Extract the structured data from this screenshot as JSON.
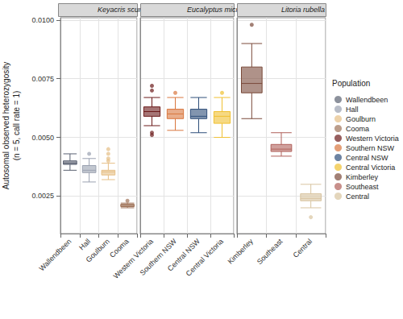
{
  "chart_data": {
    "type": "boxplot",
    "y_label": "Autosomal observed heterozygosity\n(n = 5, call rate = 1)",
    "ylim": [
      0.0009,
      0.0101
    ],
    "yticks": [
      0.0025,
      {
        "value": 0.005,
        "label": "0.0050"
      },
      0.0075,
      {
        "value": 0.01,
        "label": "0.0100"
      }
    ],
    "grid": true,
    "legend": "right",
    "legend_title": "Population",
    "panels": [
      {
        "title": "Keyacris scurra",
        "categories": [
          "Wallendbeen",
          "Hall",
          "Goulburn",
          "Cooma"
        ],
        "colors": [
          "#5b6272",
          "#9aa1b0",
          "#e6bf86",
          "#a0745a"
        ],
        "values": [
          [
            0.0036,
            0.00385,
            0.0039,
            0.004,
            0.0043
          ],
          [
            0.0031,
            0.0035,
            0.0036,
            0.0038,
            0.0041
          ],
          [
            0.0032,
            0.0034,
            0.00353,
            0.0036,
            0.0039
          ],
          [
            0.002,
            0.00205,
            0.0021,
            0.00215,
            0.0022
          ]
        ],
        "outliers": [
          [],
          [
            0.0043
          ],
          [
            0.004,
            0.0041,
            0.0043,
            0.0045
          ],
          [
            0.0023
          ]
        ]
      },
      {
        "title": "Eucalyptus microcarpa",
        "categories": [
          "Western Victoria",
          "Southern NSW",
          "Central NSW",
          "Central Victoria"
        ],
        "colors": [
          "#6b1a1a",
          "#d9763e",
          "#2f4f7a",
          "#f0c030"
        ],
        "values": [
          [
            0.0055,
            0.0059,
            0.0061,
            0.0063,
            0.0067
          ],
          [
            0.0053,
            0.0058,
            0.006,
            0.0062,
            0.0067
          ],
          [
            0.0052,
            0.0058,
            0.0059,
            0.0062,
            0.0067
          ],
          [
            0.005,
            0.0056,
            0.0059,
            0.0061,
            0.0067
          ]
        ],
        "outliers": [
          [
            0.0051,
            0.0052,
            0.007,
            0.0072
          ],
          [
            0.0069
          ],
          [],
          [
            0.0069
          ]
        ]
      },
      {
        "title": "Litoria rubella",
        "categories": [
          "Kimberley",
          "Southeast",
          "Central"
        ],
        "colors": [
          "#7a4a3a",
          "#b0605a",
          "#d8c4a0"
        ],
        "values": [
          [
            0.0058,
            0.0069,
            0.0073,
            0.008,
            0.009
          ],
          [
            0.0042,
            0.0044,
            0.0045,
            0.0047,
            0.0052
          ],
          [
            0.002,
            0.0023,
            0.0024,
            0.0026,
            0.003
          ]
        ],
        "outliers": [
          [
            0.0098
          ],
          [],
          [
            0.0016
          ]
        ]
      }
    ]
  }
}
